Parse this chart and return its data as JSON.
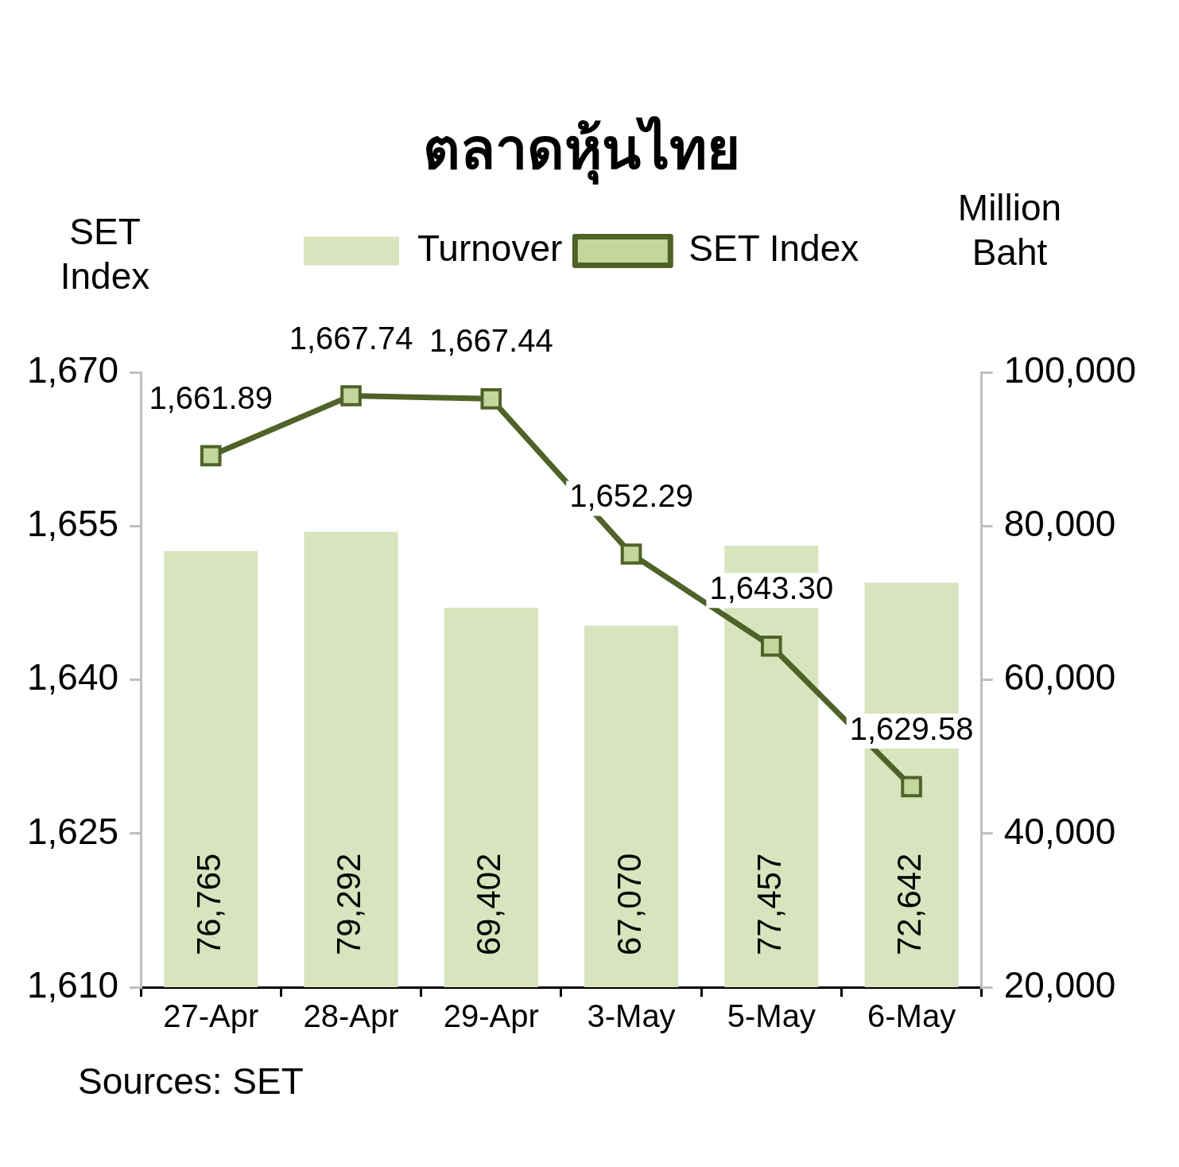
{
  "chart_data": {
    "type": "bar",
    "title": "ตลาดหุ้นไทย",
    "ylabel": "SET Index",
    "y2label": "Million Baht",
    "categories": [
      "27-Apr",
      "28-Apr",
      "29-Apr",
      "3-May",
      "5-May",
      "6-May"
    ],
    "series": [
      {
        "name": "Turnover",
        "axis": "y2",
        "color": "#d7e4bd",
        "values": [
          76765,
          79292,
          69402,
          67070,
          77457,
          72642
        ],
        "value_labels": [
          "76,765",
          "79,292",
          "69,402",
          "67,070",
          "77,457",
          "72,642"
        ]
      },
      {
        "name": "SET Index",
        "type": "line",
        "axis": "y",
        "color": "#4f6228",
        "marker": "square",
        "values": [
          1661.89,
          1667.74,
          1667.44,
          1652.29,
          1643.3,
          1629.58
        ],
        "value_labels": [
          "1,661.89",
          "1,667.74",
          "1,667.44",
          "1,652.29",
          "1,643.30",
          "1,629.58"
        ]
      }
    ],
    "ylim": [
      1610,
      1670
    ],
    "yticks": [
      {
        "value": 1610,
        "label": "1,610"
      },
      {
        "value": 1625,
        "label": "1,625"
      },
      {
        "value": 1640,
        "label": "1,640"
      },
      {
        "value": 1655,
        "label": "1,655"
      },
      {
        "value": 1670,
        "label": "1,670"
      }
    ],
    "y2lim": [
      20000,
      100000
    ],
    "y2ticks": [
      {
        "value": 20000,
        "label": "20,000"
      },
      {
        "value": 40000,
        "label": "40,000"
      },
      {
        "value": 60000,
        "label": "60,000"
      },
      {
        "value": 80000,
        "label": "80,000"
      },
      {
        "value": 100000,
        "label": "100,000"
      }
    ],
    "grid": false,
    "legend": "top",
    "annotations": [
      "Sources: SET"
    ]
  }
}
